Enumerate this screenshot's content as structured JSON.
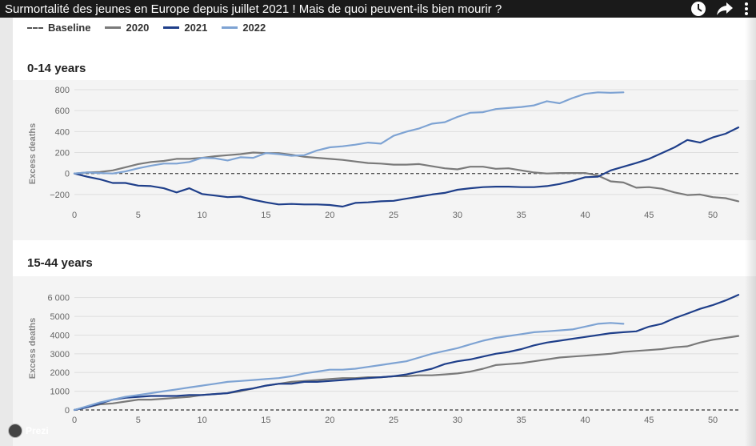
{
  "video": {
    "title": "Surmortalité des jeunes en Europe depuis juillet 2021 ! Mais de quoi peuvent-ils bien mourir ?"
  },
  "icons": {
    "watch_later": "clock-icon",
    "share": "share-arrow-icon",
    "more": "more-vert-icon"
  },
  "legend": {
    "items": [
      {
        "label": "Baseline",
        "color": "#555555",
        "style": "dashed"
      },
      {
        "label": "2020",
        "color": "#7a7a7a",
        "style": "solid"
      },
      {
        "label": "2021",
        "color": "#1f3f8a",
        "style": "solid"
      },
      {
        "label": "2022",
        "color": "#7ea3d3",
        "style": "solid"
      }
    ]
  },
  "watermark": {
    "label": "Prezi"
  },
  "chart_data": [
    {
      "type": "line",
      "title": "0-14 years",
      "ylabel": "Excess deaths",
      "xlabel": "",
      "xlim": [
        0,
        52
      ],
      "ylim": [
        -300,
        800
      ],
      "x_ticks": [
        0,
        5,
        10,
        15,
        20,
        25,
        30,
        35,
        40,
        45,
        50
      ],
      "y_ticks": [
        -200,
        0,
        200,
        400,
        600,
        800
      ],
      "y_tick_labels": [
        "−200",
        "0",
        "200",
        "400",
        "600",
        "800"
      ],
      "grid": true,
      "baseline": 0,
      "series": [
        {
          "name": "2020",
          "color": "#7a7a7a",
          "x": [
            0,
            1,
            2,
            3,
            4,
            5,
            6,
            7,
            8,
            9,
            10,
            11,
            12,
            13,
            14,
            15,
            16,
            17,
            18,
            19,
            20,
            21,
            22,
            23,
            24,
            25,
            26,
            27,
            28,
            29,
            30,
            31,
            32,
            33,
            34,
            35,
            36,
            37,
            38,
            39,
            40,
            41,
            42,
            43,
            44,
            45,
            46,
            47,
            48,
            49,
            50,
            51,
            52
          ],
          "y": [
            0,
            10,
            15,
            30,
            60,
            90,
            110,
            120,
            140,
            140,
            150,
            165,
            175,
            185,
            200,
            195,
            195,
            180,
            160,
            150,
            140,
            130,
            115,
            100,
            95,
            85,
            85,
            90,
            70,
            50,
            40,
            65,
            65,
            45,
            50,
            30,
            10,
            0,
            5,
            5,
            5,
            -20,
            -75,
            -85,
            -135,
            -130,
            -145,
            -180,
            -205,
            -200,
            -225,
            -235,
            -265
          ]
        },
        {
          "name": "2021",
          "color": "#1f3f8a",
          "x": [
            0,
            1,
            2,
            3,
            4,
            5,
            6,
            7,
            8,
            9,
            10,
            11,
            12,
            13,
            14,
            15,
            16,
            17,
            18,
            19,
            20,
            21,
            22,
            23,
            24,
            25,
            26,
            27,
            28,
            29,
            30,
            31,
            32,
            33,
            34,
            35,
            36,
            37,
            38,
            39,
            40,
            41,
            42,
            43,
            44,
            45,
            46,
            47,
            48,
            49,
            50,
            51,
            52
          ],
          "y": [
            0,
            -30,
            -55,
            -90,
            -90,
            -115,
            -120,
            -140,
            -180,
            -140,
            -195,
            -210,
            -225,
            -220,
            -250,
            -275,
            -295,
            -290,
            -295,
            -295,
            -300,
            -315,
            -280,
            -275,
            -265,
            -260,
            -240,
            -220,
            -200,
            -185,
            -155,
            -140,
            -130,
            -125,
            -125,
            -130,
            -130,
            -120,
            -100,
            -70,
            -35,
            -30,
            30,
            65,
            100,
            140,
            195,
            250,
            320,
            295,
            345,
            380,
            440
          ]
        },
        {
          "name": "2022",
          "color": "#7ea3d3",
          "x": [
            0,
            1,
            2,
            3,
            4,
            5,
            6,
            7,
            8,
            9,
            10,
            11,
            12,
            13,
            14,
            15,
            16,
            17,
            18,
            19,
            20,
            21,
            22,
            23,
            24,
            25,
            26,
            27,
            28,
            29,
            30,
            31,
            32,
            33,
            34,
            35,
            36,
            37,
            38,
            39,
            40,
            41,
            42,
            43
          ],
          "y": [
            0,
            10,
            5,
            0,
            20,
            50,
            75,
            95,
            95,
            110,
            150,
            145,
            125,
            155,
            150,
            195,
            185,
            170,
            175,
            220,
            250,
            260,
            275,
            295,
            285,
            360,
            400,
            430,
            475,
            490,
            540,
            580,
            585,
            615,
            625,
            635,
            650,
            690,
            670,
            720,
            760,
            775,
            770,
            775
          ]
        }
      ]
    },
    {
      "type": "line",
      "title": "15-44 years",
      "ylabel": "Excess deaths",
      "xlabel": "",
      "xlim": [
        0,
        52
      ],
      "ylim": [
        0,
        6200
      ],
      "x_ticks": [
        0,
        5,
        10,
        15,
        20,
        25,
        30,
        35,
        40,
        45,
        50
      ],
      "y_ticks": [
        0,
        1000,
        2000,
        3000,
        4000,
        5000,
        6000
      ],
      "y_tick_labels": [
        "0",
        "1000",
        "2000",
        "3000",
        "4000",
        "5000",
        "6 000"
      ],
      "grid": true,
      "baseline": 0,
      "series": [
        {
          "name": "2020",
          "color": "#7a7a7a",
          "x": [
            0,
            1,
            2,
            3,
            4,
            5,
            6,
            7,
            8,
            9,
            10,
            11,
            12,
            13,
            14,
            15,
            16,
            17,
            18,
            19,
            20,
            21,
            22,
            23,
            24,
            25,
            26,
            27,
            28,
            29,
            30,
            31,
            32,
            33,
            34,
            35,
            36,
            37,
            38,
            39,
            40,
            41,
            42,
            43,
            44,
            45,
            46,
            47,
            48,
            49,
            50,
            51,
            52
          ],
          "y": [
            0,
            150,
            300,
            350,
            450,
            550,
            550,
            600,
            650,
            700,
            800,
            850,
            900,
            1000,
            1150,
            1300,
            1400,
            1500,
            1550,
            1600,
            1650,
            1700,
            1700,
            1750,
            1750,
            1800,
            1800,
            1850,
            1850,
            1900,
            1950,
            2050,
            2200,
            2400,
            2450,
            2500,
            2600,
            2700,
            2800,
            2850,
            2900,
            2950,
            3000,
            3100,
            3150,
            3200,
            3250,
            3350,
            3400,
            3600,
            3750,
            3850,
            3950
          ]
        },
        {
          "name": "2021",
          "color": "#1f3f8a",
          "x": [
            0,
            1,
            2,
            3,
            4,
            5,
            6,
            7,
            8,
            9,
            10,
            11,
            12,
            13,
            14,
            15,
            16,
            17,
            18,
            19,
            20,
            21,
            22,
            23,
            24,
            25,
            26,
            27,
            28,
            29,
            30,
            31,
            32,
            33,
            34,
            35,
            36,
            37,
            38,
            39,
            40,
            41,
            42,
            43,
            44,
            45,
            46,
            47,
            48,
            49,
            50,
            51,
            52
          ],
          "y": [
            0,
            150,
            350,
            550,
            650,
            700,
            750,
            750,
            750,
            800,
            800,
            850,
            900,
            1050,
            1150,
            1300,
            1400,
            1400,
            1500,
            1500,
            1550,
            1600,
            1650,
            1700,
            1750,
            1800,
            1900,
            2050,
            2200,
            2450,
            2600,
            2700,
            2850,
            3000,
            3100,
            3250,
            3450,
            3600,
            3700,
            3800,
            3900,
            4000,
            4100,
            4150,
            4200,
            4450,
            4600,
            4900,
            5150,
            5400,
            5600,
            5850,
            6150
          ]
        },
        {
          "name": "2022",
          "color": "#7ea3d3",
          "x": [
            0,
            1,
            2,
            3,
            4,
            5,
            6,
            7,
            8,
            9,
            10,
            11,
            12,
            13,
            14,
            15,
            16,
            17,
            18,
            19,
            20,
            21,
            22,
            23,
            24,
            25,
            26,
            27,
            28,
            29,
            30,
            31,
            32,
            33,
            34,
            35,
            36,
            37,
            38,
            39,
            40,
            41,
            42,
            43
          ],
          "y": [
            0,
            200,
            400,
            550,
            700,
            800,
            900,
            1000,
            1100,
            1200,
            1300,
            1400,
            1500,
            1550,
            1600,
            1650,
            1700,
            1800,
            1950,
            2050,
            2150,
            2150,
            2200,
            2300,
            2400,
            2500,
            2600,
            2800,
            3000,
            3150,
            3300,
            3500,
            3700,
            3850,
            3950,
            4050,
            4150,
            4200,
            4250,
            4300,
            4450,
            4600,
            4650,
            4600
          ]
        }
      ]
    }
  ]
}
